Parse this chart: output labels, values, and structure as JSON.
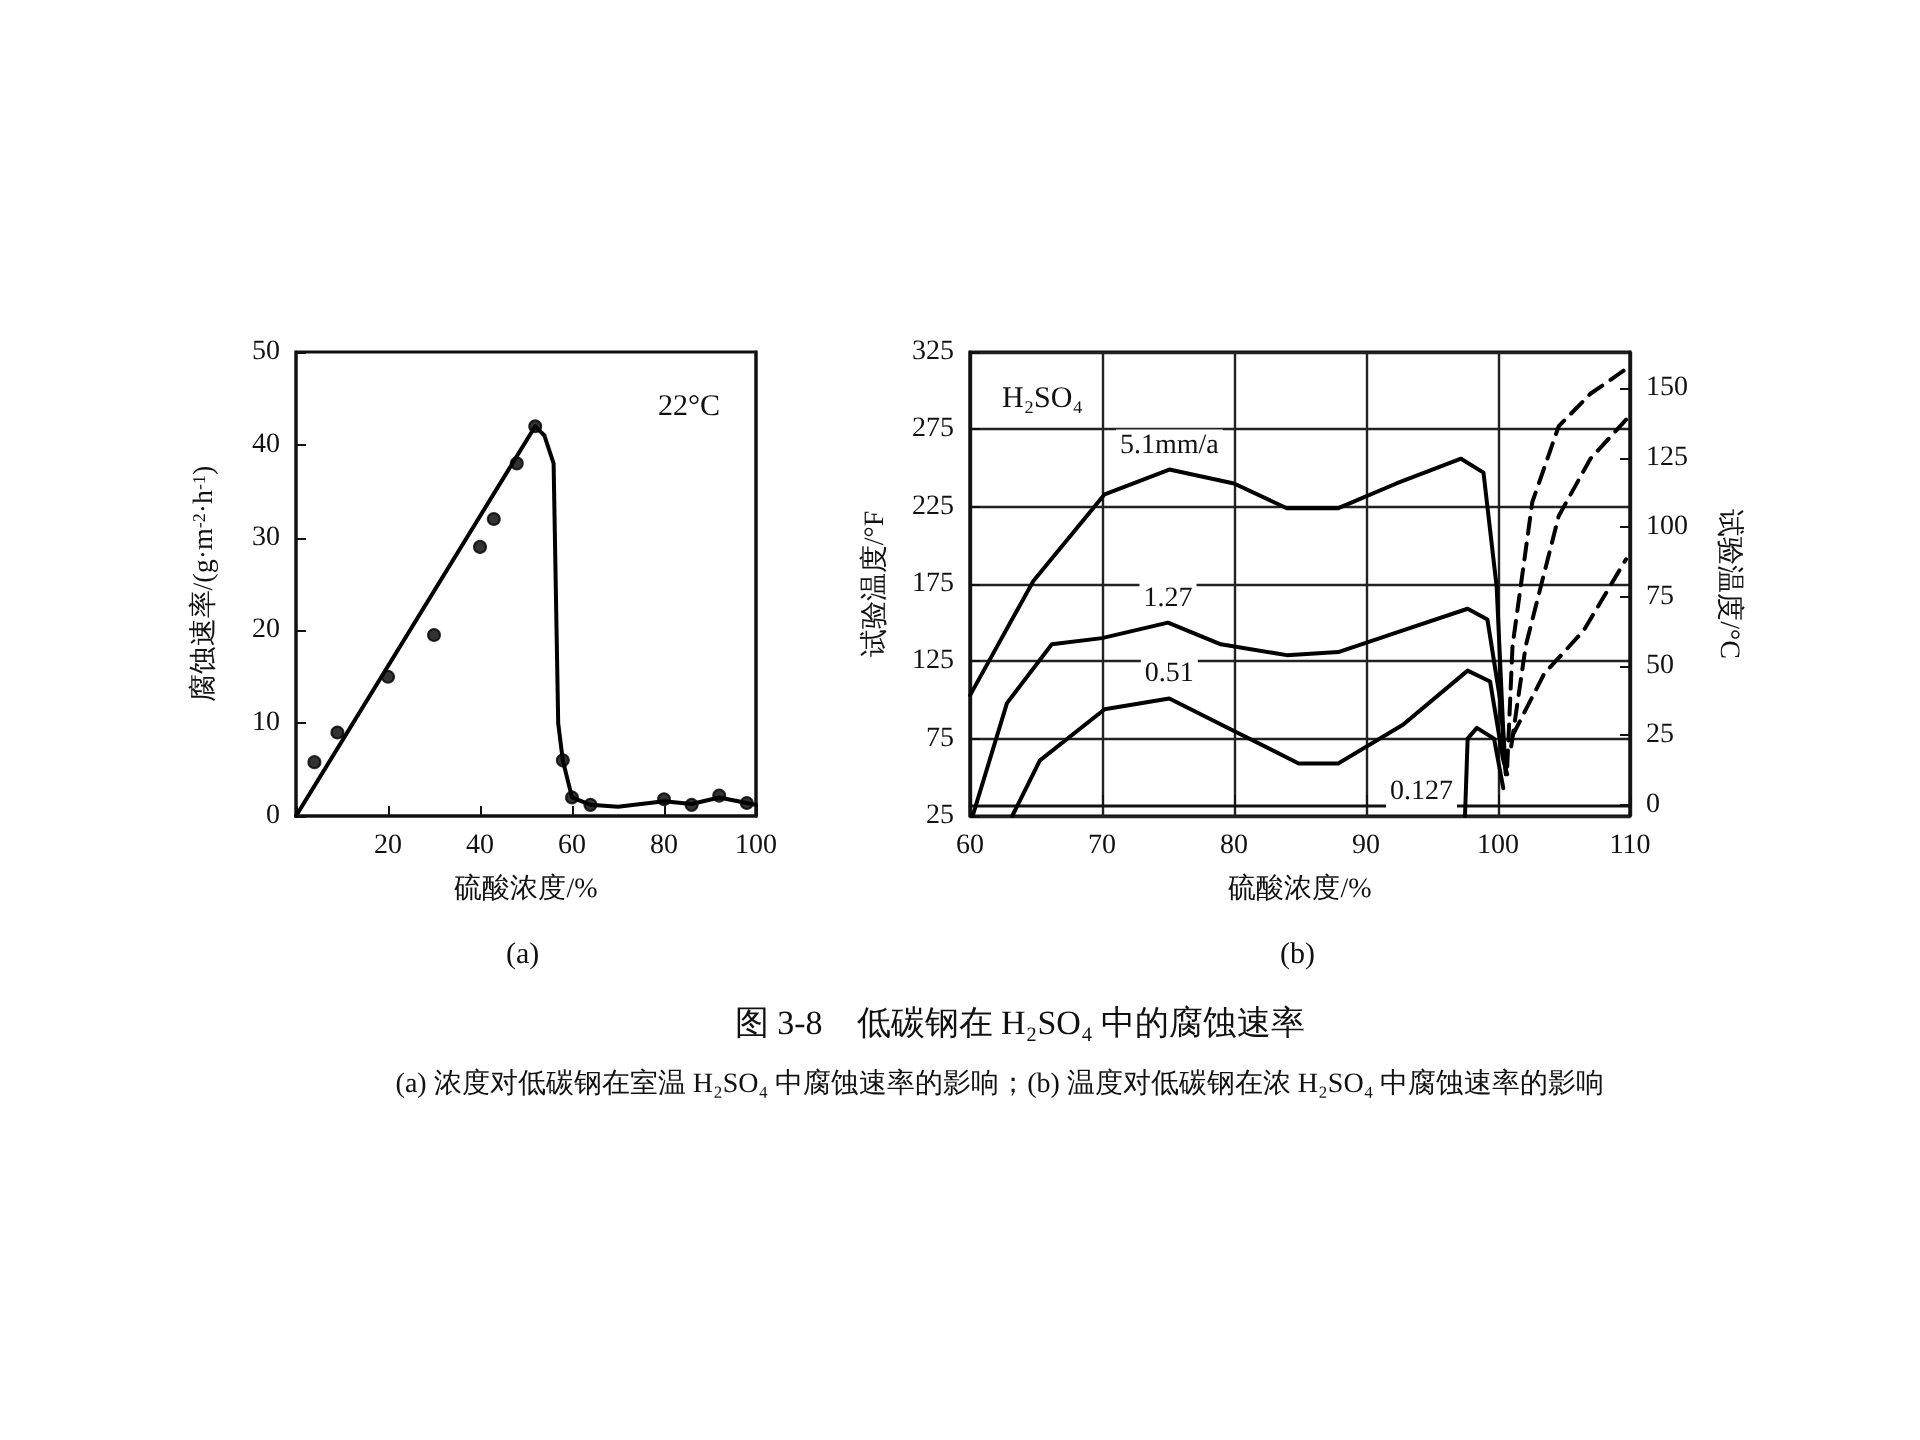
{
  "chart_data": [
    {
      "type": "line",
      "xlabel": "硫酸浓度/%",
      "ylabel": "腐蚀速率/(g·m$^{-2}$·h$^{-1}$)",
      "annotations": [
        "22°C",
        "(a)"
      ],
      "xlim": [
        0,
        100
      ],
      "xticks": [
        {
          "value": 0,
          "label": null
        },
        20,
        40,
        60,
        80,
        100
      ],
      "ylim": [
        0,
        50
      ],
      "yticks": [
        0,
        10,
        20,
        30,
        40,
        50
      ],
      "grid": false,
      "series": [
        {
          "type": "line",
          "marker": "none",
          "color": "#000000",
          "x": [
            0,
            52,
            54,
            56,
            57,
            58,
            60,
            64,
            70,
            80,
            86,
            92,
            98,
            100
          ],
          "values": [
            0,
            42,
            41,
            38,
            10,
            6,
            2,
            1.2,
            1,
            1.6,
            1.3,
            2,
            1.4,
            1.2
          ]
        },
        {
          "type": "scatter",
          "marker": "circle",
          "color": "#000000",
          "x": [
            4,
            9,
            20,
            30,
            40,
            43,
            48,
            52,
            58,
            60,
            64,
            80,
            86,
            92,
            98
          ],
          "values": [
            5.8,
            9,
            15,
            19.5,
            29,
            32,
            38,
            42,
            6,
            2,
            1.2,
            1.8,
            1.2,
            2.2,
            1.4
          ]
        }
      ]
    },
    {
      "type": "line",
      "xlabel": "硫酸浓度/%",
      "ylabel": "试验温度/°F",
      "y2label": "试验温度/°C",
      "annotations": [
        "H₂SO₄",
        "(b)",
        "图 3-8　低碳钢在 H₂SO₄ 中的腐蚀速率",
        "(a) 浓度对低碳钢在室温 H₂SO₄ 中腐蚀速率的影响；(b) 温度对低碳钢在浓 H₂SO₄ 中腐蚀速率的影响"
      ],
      "xlim": [
        60,
        110
      ],
      "xticks": [
        60,
        70,
        80,
        90,
        100,
        110
      ],
      "ylim": [
        25,
        325
      ],
      "yticks": [
        25,
        75,
        125,
        175,
        225,
        275,
        325
      ],
      "y2lim": [
        -4,
        163
      ],
      "y2ticks": [
        0,
        25,
        50,
        75,
        100,
        125,
        150
      ],
      "grid": true,
      "marker": "none",
      "series": [
        {
          "name": "5.1mm/a",
          "color": "#000000",
          "line_style": "solid",
          "x": [
            60,
            64.8,
            70.2,
            75.1,
            80,
            84,
            87.9,
            92.3,
            97.2,
            98.9,
            99.9,
            100.4,
            100.6
          ],
          "values": [
            103,
            177,
            233,
            249,
            240,
            224,
            224,
            240,
            256,
            247,
            173,
            80,
            52
          ]
        },
        {
          "name": "1.27",
          "color": "#000000",
          "line_style": "solid",
          "x": [
            60.2,
            62.8,
            66.2,
            70,
            75,
            79,
            84,
            87.9,
            92.8,
            97.7,
            99.2,
            100.2,
            100.6
          ],
          "values": [
            25,
            98,
            136,
            140,
            150,
            136,
            129,
            131,
            145,
            159,
            152,
            98,
            52
          ]
        },
        {
          "name": "0.51",
          "color": "#000000",
          "line_style": "solid",
          "x": [
            63.2,
            65.3,
            70.2,
            75.1,
            80,
            84.9,
            87.9,
            92.8,
            97.7,
            99.4,
            100.4,
            100.7
          ],
          "values": [
            25,
            61,
            94,
            101,
            80,
            59,
            59,
            84,
            119,
            112,
            61,
            52
          ]
        },
        {
          "name": "0.127",
          "color": "#000000",
          "line_style": "solid",
          "x": [
            97.5,
            97.7,
            98.4,
            99.7,
            100.4
          ],
          "values": [
            25,
            75,
            82,
            75,
            43
          ]
        },
        {
          "color": "#000000",
          "line_style": "dashed",
          "x": [
            100.7,
            101.1,
            102.6,
            104.6,
            107,
            109.7
          ],
          "values": [
            57,
            135,
            228,
            277,
            298,
            314
          ]
        },
        {
          "color": "#000000",
          "line_style": "dashed",
          "x": [
            101,
            102.1,
            104.6,
            107,
            110
          ],
          "values": [
            70,
            135,
            219,
            256,
            284
          ]
        },
        {
          "color": "#000000",
          "line_style": "dashed",
          "x": [
            101.1,
            103.5,
            106.5,
            109.7
          ],
          "values": [
            77,
            117,
            145,
            191
          ]
        }
      ]
    }
  ]
}
